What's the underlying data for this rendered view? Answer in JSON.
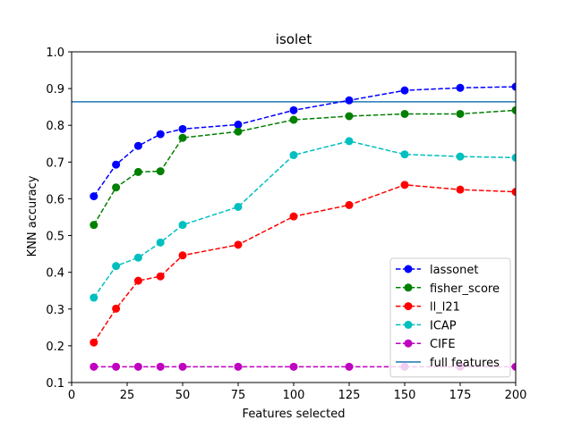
{
  "chart_data": {
    "type": "line",
    "title": "isolet",
    "xlabel": "Features selected",
    "ylabel": "KNN accuracy",
    "xlim": [
      0,
      200
    ],
    "ylim": [
      0.1,
      1.0
    ],
    "xticks": [
      0,
      25,
      50,
      75,
      100,
      125,
      150,
      175,
      200
    ],
    "yticks": [
      0.1,
      0.2,
      0.3,
      0.4,
      0.5,
      0.6,
      0.7,
      0.8,
      0.9,
      1.0
    ],
    "xtick_labels": [
      "0",
      "25",
      "50",
      "75",
      "100",
      "125",
      "150",
      "175",
      "200"
    ],
    "ytick_labels": [
      "0.1",
      "0.2",
      "0.3",
      "0.4",
      "0.5",
      "0.6",
      "0.7",
      "0.8",
      "0.9",
      "1.0"
    ],
    "grid": false,
    "legend_position": "lower-right",
    "x": [
      10,
      20,
      30,
      40,
      50,
      75,
      100,
      125,
      150,
      175,
      200
    ],
    "series": [
      {
        "name": "lassonet",
        "color": "#0000ff",
        "style": "dashed",
        "marker": "circle",
        "values": [
          0.607,
          0.693,
          0.744,
          0.776,
          0.79,
          0.802,
          0.841,
          0.868,
          0.895,
          0.902,
          0.905
        ]
      },
      {
        "name": "fisher_score",
        "color": "#008000",
        "style": "dashed",
        "marker": "circle",
        "values": [
          0.529,
          0.631,
          0.673,
          0.675,
          0.766,
          0.783,
          0.815,
          0.825,
          0.831,
          0.831,
          0.841
        ]
      },
      {
        "name": "ll_l21",
        "color": "#ff0000",
        "style": "dashed",
        "marker": "circle",
        "values": [
          0.209,
          0.301,
          0.377,
          0.389,
          0.446,
          0.475,
          0.552,
          0.583,
          0.638,
          0.625,
          0.619
        ]
      },
      {
        "name": "ICAP",
        "color": "#00bfbf",
        "style": "dashed",
        "marker": "circle",
        "values": [
          0.331,
          0.417,
          0.44,
          0.481,
          0.529,
          0.578,
          0.719,
          0.757,
          0.721,
          0.715,
          0.712
        ]
      },
      {
        "name": "CIFE",
        "color": "#bf00bf",
        "style": "dashed",
        "marker": "circle",
        "values": [
          0.143,
          0.143,
          0.143,
          0.143,
          0.143,
          0.143,
          0.143,
          0.143,
          0.143,
          0.143,
          0.143
        ]
      }
    ],
    "reference_lines": [
      {
        "name": "full features",
        "color": "#1f77b4",
        "style": "solid",
        "y": 0.864
      }
    ]
  }
}
